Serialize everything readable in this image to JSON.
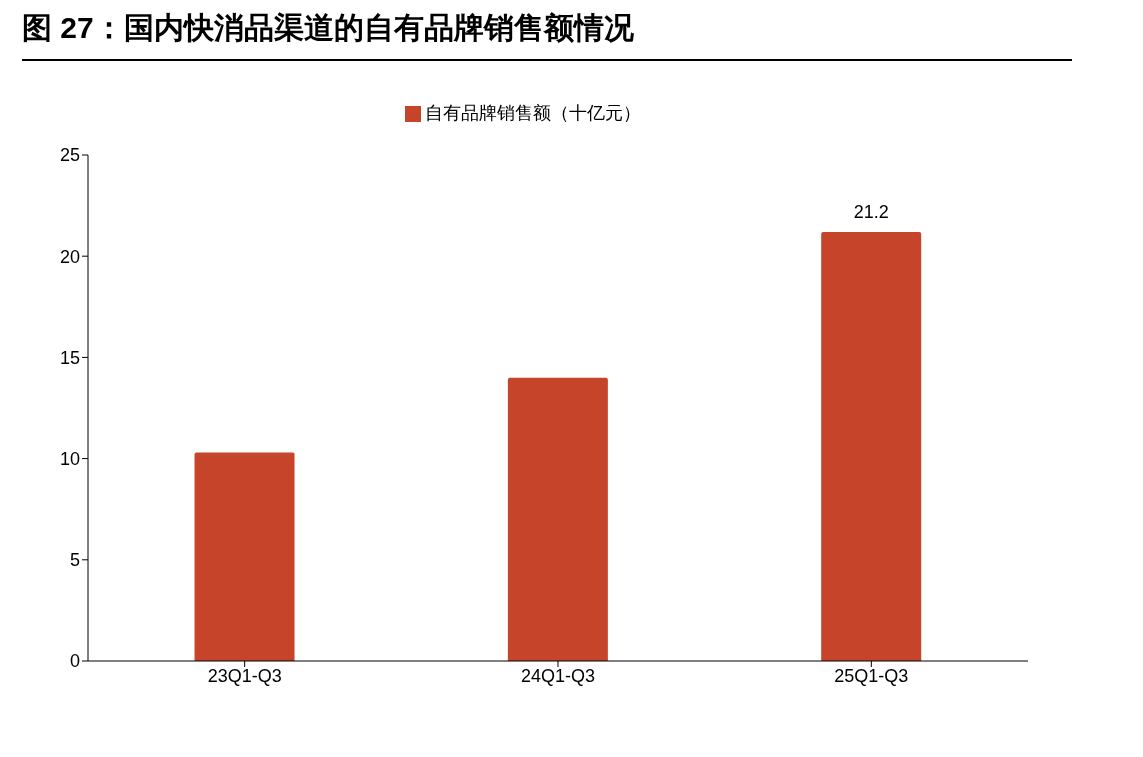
{
  "chart_data": {
    "type": "bar",
    "title": "图 27：国内快消品渠道的自有品牌销售额情况",
    "categories": [
      "23Q1-Q3",
      "24Q1-Q3",
      "25Q1-Q3"
    ],
    "series": [
      {
        "name": "自有品牌销售额（十亿元）",
        "color": "#c5442a",
        "values": [
          10.3,
          14.0,
          21.2
        ],
        "value_labels": [
          null,
          null,
          "21.2"
        ]
      }
    ],
    "ylim": [
      0,
      25
    ],
    "yticks": [
      0,
      5,
      10,
      15,
      20,
      25
    ],
    "grid": false,
    "legend": "top"
  }
}
